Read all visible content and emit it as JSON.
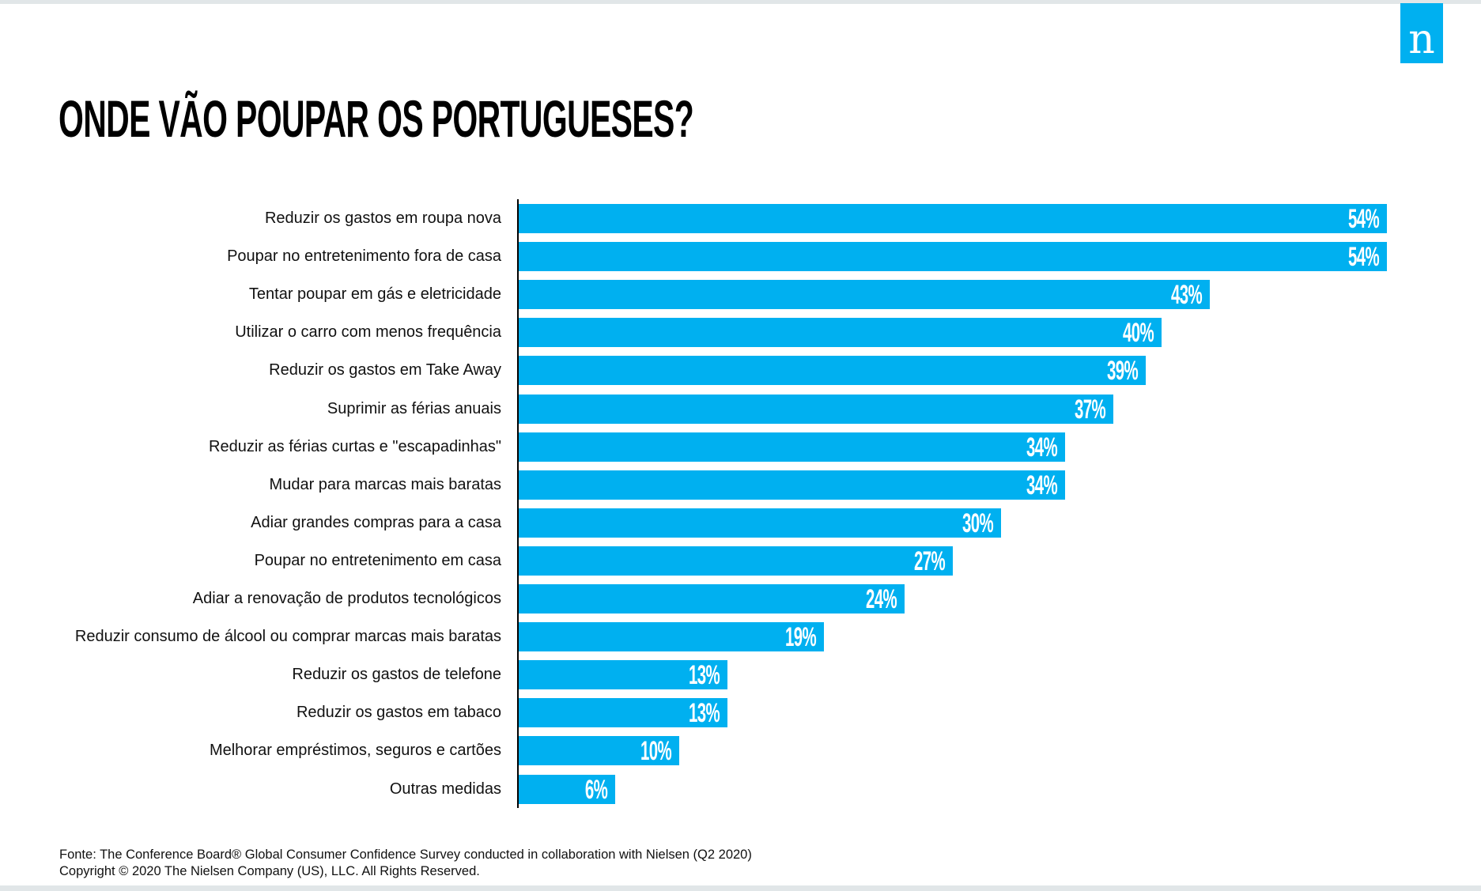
{
  "logo_text": "n",
  "chart_data": {
    "type": "bar",
    "orientation": "horizontal",
    "title": "ONDE VÃO POUPAR OS PORTUGUESES?",
    "xlabel": "",
    "ylabel": "",
    "xlim": [
      0,
      54
    ],
    "grid": false,
    "color": "#00b0f0",
    "categories": [
      "Reduzir os gastos em roupa nova",
      "Poupar no entretenimento fora de casa",
      "Tentar poupar em gás e eletricidade",
      "Utilizar o carro com menos frequência",
      "Reduzir os gastos em Take Away",
      "Suprimir as férias anuais",
      "Reduzir as férias curtas e \"escapadinhas\"",
      "Mudar para marcas mais baratas",
      "Adiar grandes compras para a casa",
      "Poupar no entretenimento em casa",
      "Adiar a renovação de produtos tecnológicos",
      "Reduzir consumo de álcool ou comprar marcas mais baratas",
      "Reduzir os gastos de telefone",
      "Reduzir os gastos em tabaco",
      "Melhorar empréstimos, seguros e cartões",
      "Outras medidas"
    ],
    "values": [
      54,
      54,
      43,
      40,
      39,
      37,
      34,
      34,
      30,
      27,
      24,
      19,
      13,
      13,
      10,
      6
    ],
    "data_labels": [
      "54%",
      "54%",
      "43%",
      "40%",
      "39%",
      "37%",
      "34%",
      "34%",
      "30%",
      "27%",
      "24%",
      "19%",
      "13%",
      "13%",
      "10%",
      "6%"
    ]
  },
  "footer": {
    "source": "Fonte:  The Conference Board® Global Consumer Confidence Survey conducted in collaboration with Nielsen (Q2 2020)",
    "copyright": "Copyright © 2020 The Nielsen Company (US), LLC. All Rights Reserved."
  }
}
